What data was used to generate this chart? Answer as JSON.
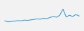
{
  "values": [
    3.2,
    2.8,
    3.0,
    3.1,
    3.3,
    3.2,
    3.5,
    3.4,
    3.6,
    3.8,
    4.0,
    3.9,
    4.3,
    4.1,
    4.6,
    5.0,
    4.7,
    5.5,
    8.0,
    4.8,
    5.5,
    5.0,
    5.8,
    5.2
  ],
  "line_color": "#3a9fd6",
  "background_color": "#f2f2f2",
  "linewidth": 0.8
}
